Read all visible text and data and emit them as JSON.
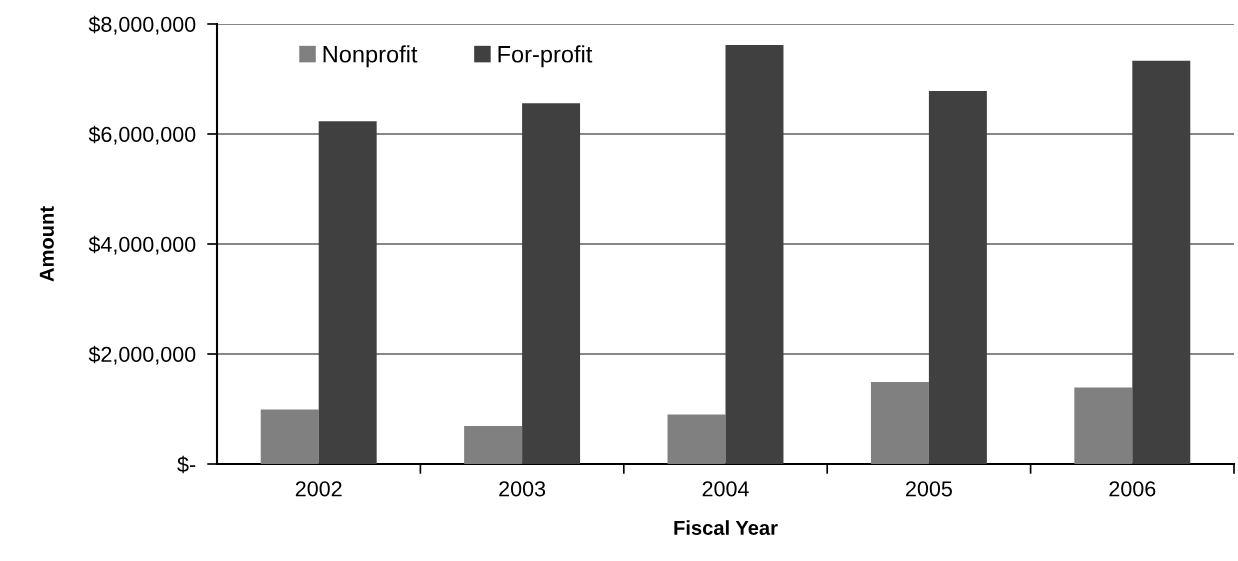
{
  "chart_data": {
    "type": "bar",
    "xlabel": "Fiscal Year",
    "ylabel": "Amount",
    "categories": [
      "2002",
      "2003",
      "2004",
      "2005",
      "2006"
    ],
    "series": [
      {
        "name": "Nonprofit",
        "color": "#808080",
        "values": [
          990000,
          690000,
          900000,
          1490000,
          1390000
        ]
      },
      {
        "name": "For-profit",
        "color": "#404040",
        "values": [
          6230000,
          6560000,
          7620000,
          6780000,
          7330000
        ]
      }
    ],
    "ylim": [
      0,
      8000000
    ],
    "yticks": [
      {
        "value": 0,
        "label": "$-"
      },
      {
        "value": 2000000,
        "label": "$2,000,000"
      },
      {
        "value": 4000000,
        "label": "$4,000,000"
      },
      {
        "value": 6000000,
        "label": "$6,000,000"
      },
      {
        "value": 8000000,
        "label": "$8,000,000"
      }
    ],
    "grid": "y",
    "legend": "top left"
  }
}
